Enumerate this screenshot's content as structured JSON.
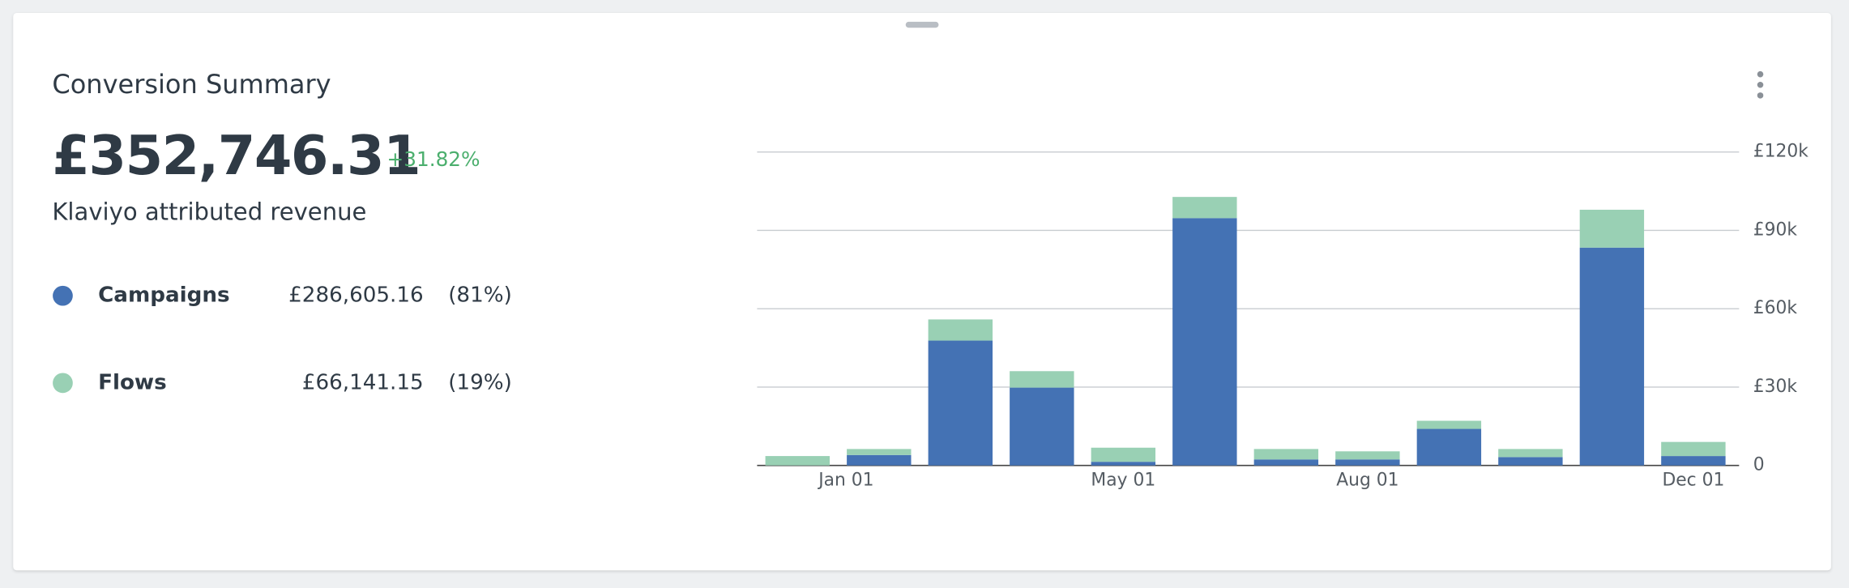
{
  "chart_data": {
    "type": "bar",
    "stacked": true,
    "title": "Conversion Summary",
    "headline": "£352,746.31",
    "change": "+31.82%",
    "subtitle": "Klaviyo attributed revenue",
    "categories": [
      "Jan 01",
      null,
      null,
      null,
      "May 01",
      null,
      null,
      "Aug 01",
      null,
      null,
      null,
      "Dec 01"
    ],
    "series": [
      {
        "name": "Campaigns",
        "color": "#4472b4",
        "total": "£286,605.16",
        "share": "(81%)",
        "values": [
          0,
          4000,
          47800,
          29800,
          1400,
          94700,
          2300,
          2300,
          14000,
          3200,
          83400,
          3600
        ]
      },
      {
        "name": "Flows",
        "color": "#99d0b4",
        "total": "£66,141.15",
        "share": "(19%)",
        "values": [
          3600,
          2300,
          8100,
          6300,
          5400,
          8100,
          4000,
          3100,
          3100,
          3100,
          14500,
          5400
        ]
      }
    ],
    "ylim": [
      0,
      120000
    ],
    "yticks": [
      0,
      {
        "value": 30000,
        "label": "£30k"
      },
      {
        "value": 60000,
        "label": "£60k"
      },
      {
        "value": 90000,
        "label": "£90k"
      },
      {
        "value": 120000,
        "label": "£120k"
      }
    ],
    "grid": true
  }
}
